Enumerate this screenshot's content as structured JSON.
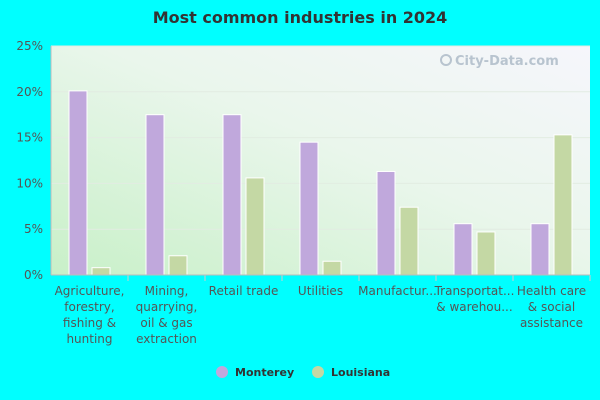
{
  "chart_data": {
    "type": "bar",
    "title": "Most common industries in 2024",
    "categories": [
      [
        "Agriculture,",
        "forestry,",
        "fishing &",
        "hunting"
      ],
      [
        "Mining,",
        "quarrying,",
        "oil & gas",
        "extraction"
      ],
      [
        "Retail trade"
      ],
      [
        "Utilities"
      ],
      [
        "Manufactur..."
      ],
      [
        "Transportat...",
        "& warehou..."
      ],
      [
        "Health care",
        "& social",
        "assistance"
      ]
    ],
    "series": [
      {
        "name": "Monterey",
        "color": "#c0a8dc",
        "values": [
          20.1,
          17.5,
          17.5,
          14.5,
          11.3,
          5.6,
          5.6
        ]
      },
      {
        "name": "Louisiana",
        "color": "#c4d8a4",
        "values": [
          0.8,
          2.1,
          10.6,
          1.5,
          7.4,
          4.7,
          15.3
        ]
      }
    ],
    "y_ticks": [
      "0%",
      "5%",
      "10%",
      "15%",
      "20%",
      "25%"
    ],
    "ylim": [
      0,
      25
    ],
    "grid": true,
    "legend_position": "bottom-center"
  },
  "watermark": {
    "text": "City-Data.com",
    "icon": "magnifier-icon"
  }
}
